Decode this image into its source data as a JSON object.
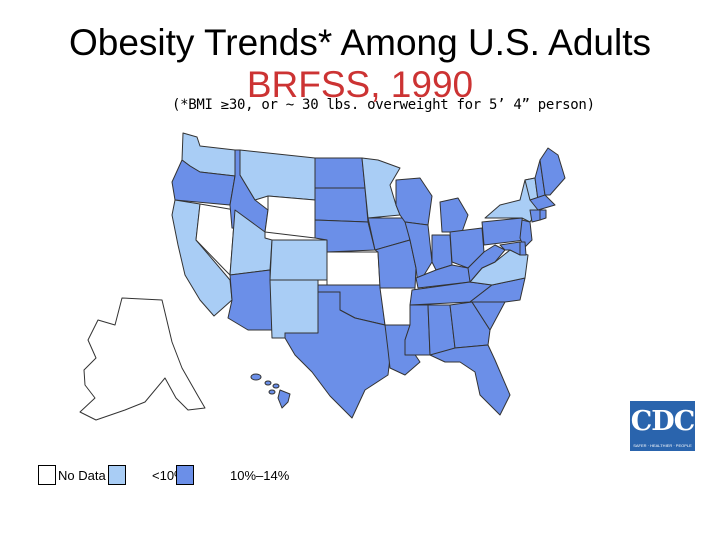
{
  "title": {
    "line1": "Obesity Trends* Among U.S. Adults",
    "line2": "BRFSS, 1990",
    "subtitle": "(*BMI ≥30, or ~ 30 lbs. overweight for 5’ 4” person)"
  },
  "colors": {
    "no_data": "#ffffff",
    "lt10": "#a9cdf5",
    "10_14": "#6b8fe8",
    "border": "#333333"
  },
  "legend": [
    {
      "key": "no_data",
      "label": "No Data",
      "color": "#ffffff"
    },
    {
      "key": "lt10",
      "label": "<10%",
      "color": "#a9cdf5"
    },
    {
      "key": "10_14",
      "label": "10%–14%",
      "color": "#6b8fe8"
    }
  ],
  "logo": {
    "text": "CDC",
    "tagline": "SAFER · HEALTHIER · PEOPLE"
  },
  "states": {
    "WA": "lt10",
    "OR": "10_14",
    "CA": "lt10",
    "NV": "no_data",
    "ID": "10_14",
    "MT": "lt10",
    "WY": "no_data",
    "UT": "lt10",
    "AZ": "10_14",
    "CO": "lt10",
    "NM": "lt10",
    "ND": "10_14",
    "SD": "10_14",
    "NE": "10_14",
    "KS": "no_data",
    "OK": "10_14",
    "TX": "10_14",
    "MN": "lt10",
    "IA": "10_14",
    "MO": "10_14",
    "AR": "no_data",
    "LA": "10_14",
    "WI": "10_14",
    "IL": "10_14",
    "MI": "10_14",
    "IN": "10_14",
    "OH": "10_14",
    "KY": "10_14",
    "TN": "10_14",
    "MS": "10_14",
    "AL": "10_14",
    "GA": "10_14",
    "FL": "10_14",
    "SC": "10_14",
    "NC": "10_14",
    "VA": "lt10",
    "WV": "10_14",
    "PA": "10_14",
    "NY": "lt10",
    "VT": "lt10",
    "NH": "10_14",
    "ME": "10_14",
    "MA": "10_14",
    "CT": "10_14",
    "RI": "10_14",
    "NJ": "10_14",
    "DE": "10_14",
    "MD": "10_14",
    "AK": "no_data",
    "HI": "10_14"
  }
}
